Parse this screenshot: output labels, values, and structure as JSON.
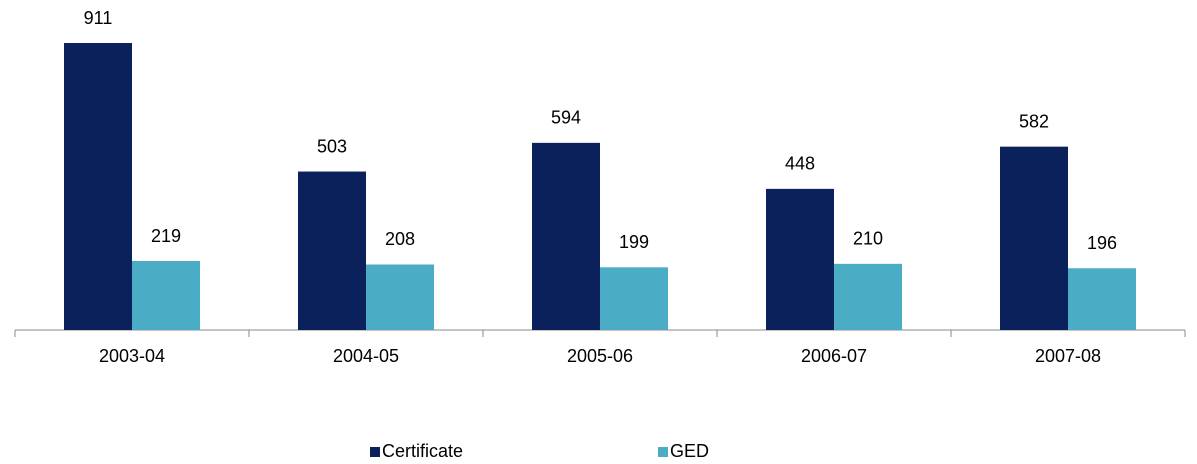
{
  "chart_data": {
    "type": "bar",
    "categories": [
      "2003-04",
      "2004-05",
      "2005-06",
      "2006-07",
      "2007-08"
    ],
    "series": [
      {
        "name": "Certificate",
        "color": "#0b215c",
        "values": [
          911,
          503,
          594,
          448,
          582
        ]
      },
      {
        "name": "GED",
        "color": "#4bacc6",
        "values": [
          219,
          208,
          199,
          210,
          196
        ]
      }
    ],
    "legend": "bottom"
  }
}
